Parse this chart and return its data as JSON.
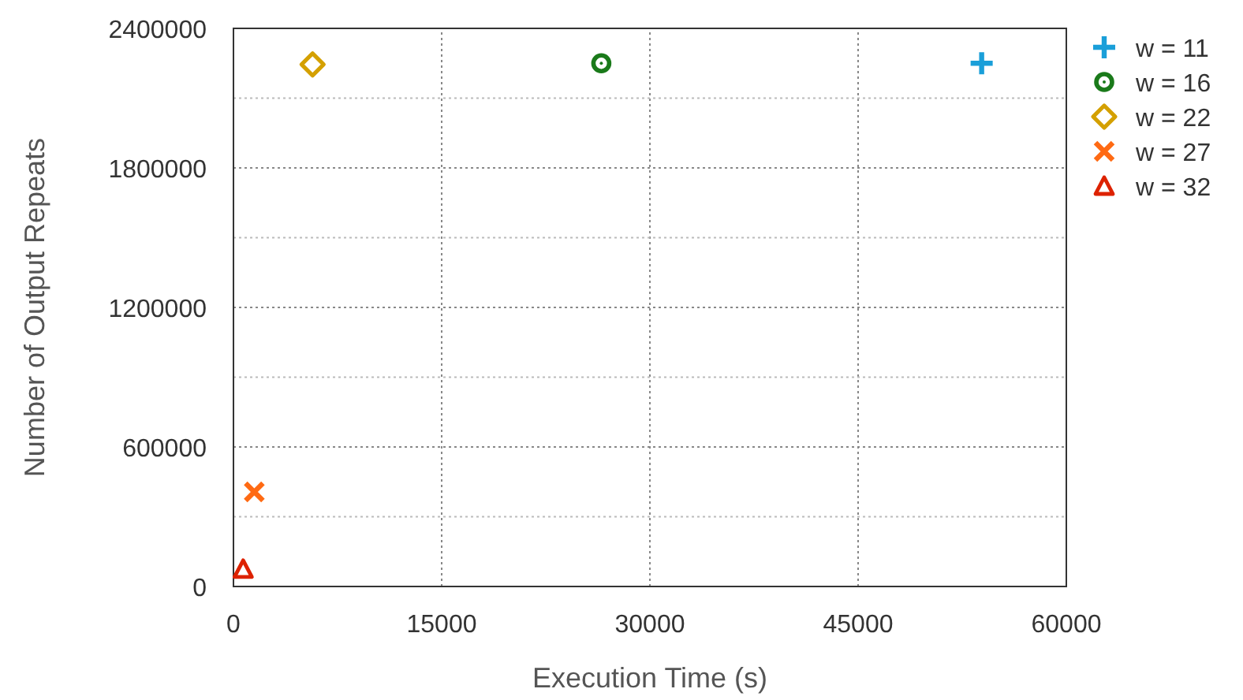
{
  "chart_data": {
    "type": "scatter",
    "xlabel": "Execution Time (s)",
    "ylabel": "Number of Output Repeats",
    "xlim": [
      0,
      60000
    ],
    "xticks": [
      0,
      15000,
      30000,
      45000,
      60000
    ],
    "ylim": [
      0,
      2400000
    ],
    "yticks": [
      0,
      {
        "value": 300000,
        "label": null
      },
      600000,
      {
        "value": 900000,
        "label": null
      },
      1200000,
      {
        "value": 1500000,
        "label": null
      },
      1800000,
      {
        "value": 2100000,
        "label": null
      },
      2400000
    ],
    "grid": true,
    "legend": "right",
    "series": [
      {
        "name": "w = 11",
        "color": "#1a9fd9",
        "marker": "cross",
        "x": [
          53900
        ],
        "values": [
          2250000
        ]
      },
      {
        "name": "w = 16",
        "color": "#1a7a1a",
        "marker": "circle",
        "x": [
          26500
        ],
        "values": [
          2250000
        ]
      },
      {
        "name": "w = 22",
        "color": "#d4a000",
        "marker": "diamond",
        "x": [
          5700
        ],
        "values": [
          2245000
        ]
      },
      {
        "name": "w = 27",
        "color": "#ff6a13",
        "marker": "x",
        "x": [
          1500
        ],
        "values": [
          407000
        ]
      },
      {
        "name": "w = 32",
        "color": "#dd2200",
        "marker": "triangle",
        "x": [
          700
        ],
        "values": [
          75000
        ]
      }
    ]
  }
}
